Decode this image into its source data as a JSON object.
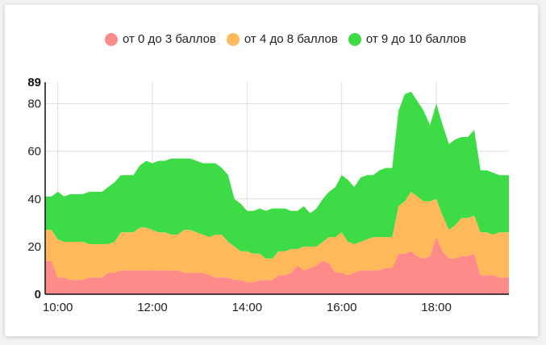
{
  "chart_data": {
    "type": "area",
    "stacked": true,
    "x_ticks": [
      "10:00",
      "12:00",
      "14:00",
      "16:00",
      "18:00"
    ],
    "y_ticks": [
      "0",
      "20",
      "40",
      "60",
      "80"
    ],
    "y_max_label": "89",
    "ylim": [
      0,
      89
    ],
    "xlim": [
      "09:44",
      "19:32"
    ],
    "grid": true,
    "legend_position": "top",
    "x": [
      "09:44",
      "09:52",
      "10:00",
      "10:08",
      "10:16",
      "10:24",
      "10:32",
      "10:40",
      "10:48",
      "10:56",
      "11:04",
      "11:12",
      "11:20",
      "11:28",
      "11:36",
      "11:44",
      "11:52",
      "12:00",
      "12:08",
      "12:16",
      "12:24",
      "12:32",
      "12:40",
      "12:48",
      "12:56",
      "13:04",
      "13:12",
      "13:20",
      "13:28",
      "13:36",
      "13:44",
      "13:52",
      "14:00",
      "14:08",
      "14:16",
      "14:24",
      "14:32",
      "14:40",
      "14:48",
      "14:56",
      "15:04",
      "15:12",
      "15:20",
      "15:28",
      "15:36",
      "15:44",
      "15:52",
      "16:00",
      "16:08",
      "16:16",
      "16:24",
      "16:32",
      "16:40",
      "16:48",
      "16:56",
      "17:04",
      "17:12",
      "17:20",
      "17:28",
      "17:36",
      "17:44",
      "17:52",
      "18:00",
      "18:08",
      "18:16",
      "18:24",
      "18:32",
      "18:40",
      "18:48",
      "18:56",
      "19:04",
      "19:12",
      "19:20",
      "19:28",
      "19:32"
    ],
    "series": [
      {
        "name": "от 0 до 3 баллов",
        "color": "#ff8a8a",
        "values": [
          14,
          14,
          7,
          7,
          6,
          6,
          6,
          7,
          7,
          7,
          9,
          9,
          10,
          10,
          10,
          10,
          10,
          10,
          10,
          10,
          10,
          10,
          9,
          9,
          9,
          9,
          8,
          7,
          7,
          7,
          6,
          6,
          5,
          5,
          6,
          6,
          6,
          8,
          8,
          9,
          12,
          10,
          11,
          12,
          14,
          13,
          9,
          9,
          8,
          9,
          10,
          10,
          10,
          10,
          11,
          11,
          17,
          17,
          18,
          16,
          15,
          16,
          24,
          18,
          15,
          15,
          16,
          16,
          17,
          8,
          8,
          8,
          7,
          7,
          7
        ]
      },
      {
        "name": "от 4 до 8 баллов",
        "color": "#ffb95a",
        "values": [
          13,
          13,
          16,
          15,
          16,
          16,
          16,
          14,
          14,
          14,
          12,
          13,
          16,
          16,
          16,
          18,
          18,
          17,
          16,
          16,
          15,
          15,
          18,
          18,
          17,
          16,
          16,
          18,
          18,
          15,
          14,
          12,
          13,
          12,
          11,
          9,
          9,
          10,
          10,
          10,
          7,
          10,
          9,
          8,
          8,
          11,
          15,
          17,
          14,
          12,
          12,
          13,
          14,
          14,
          13,
          13,
          20,
          22,
          25,
          25,
          24,
          23,
          16,
          15,
          12,
          14,
          16,
          16,
          16,
          18,
          18,
          17,
          19,
          19,
          19
        ]
      },
      {
        "name": "от 9 до 10 баллов",
        "color": "#3ddc46",
        "values": [
          14,
          14,
          20,
          19,
          20,
          20,
          20,
          22,
          22,
          22,
          24,
          25,
          24,
          24,
          24,
          26,
          28,
          28,
          30,
          30,
          32,
          32,
          30,
          30,
          30,
          30,
          31,
          30,
          28,
          28,
          20,
          20,
          17,
          18,
          19,
          20,
          21,
          18,
          18,
          16,
          16,
          17,
          14,
          16,
          18,
          19,
          21,
          24,
          26,
          24,
          27,
          27,
          26,
          28,
          29,
          29,
          40,
          45,
          42,
          40,
          38,
          32,
          40,
          38,
          36,
          36,
          34,
          34,
          36,
          26,
          26,
          26,
          24,
          24,
          24
        ]
      }
    ]
  }
}
